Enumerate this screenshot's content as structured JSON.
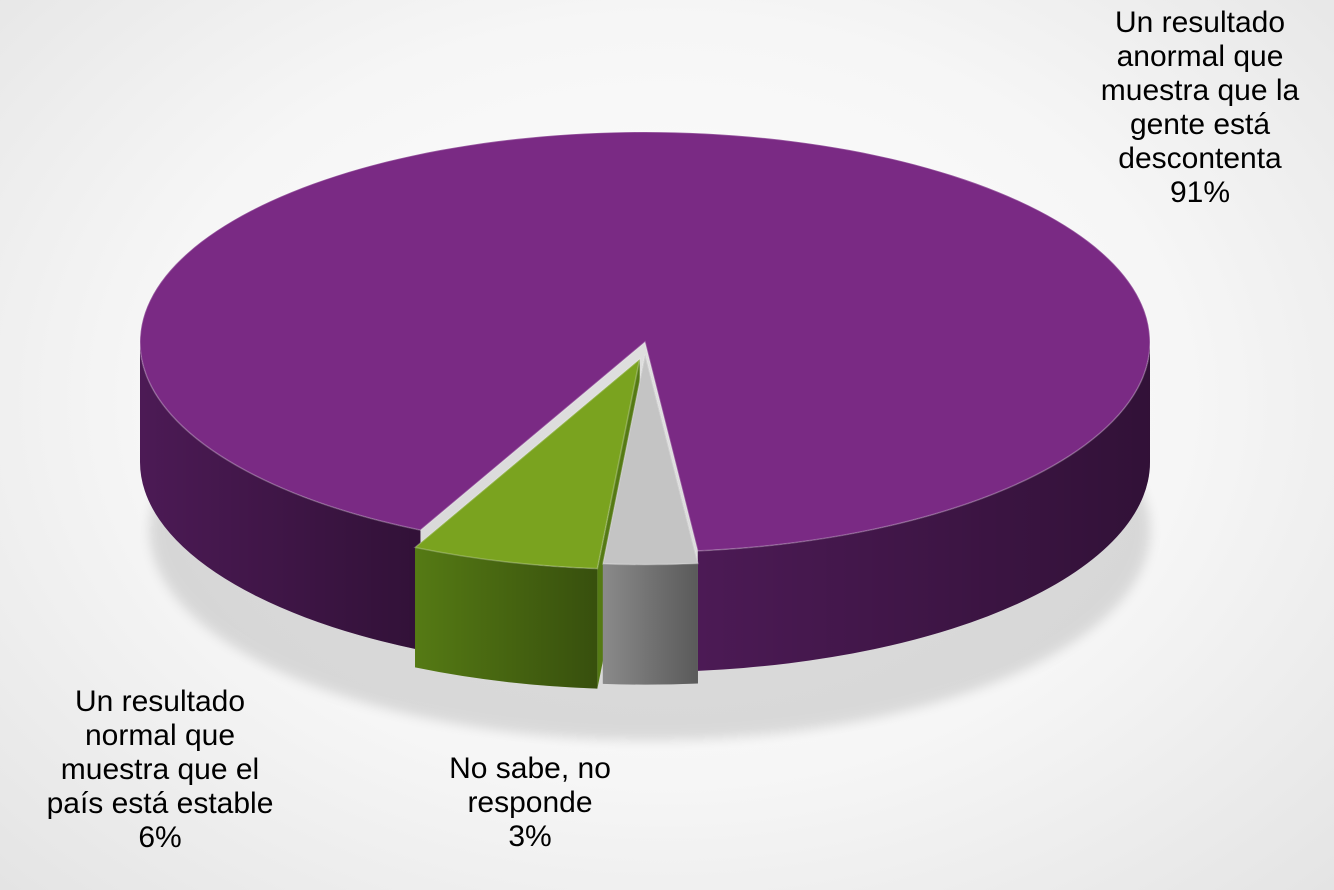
{
  "chart_data": {
    "type": "pie",
    "title": "",
    "slices": [
      {
        "label": "Un resultado\nanormal que\nmuestra que la\ngente está\ndescontenta",
        "value": 91,
        "value_label": "91%",
        "color": "#7a2a84",
        "side_color": "#4c1a55"
      },
      {
        "label": "Un resultado\nnormal que\nmuestra que el\npaís está estable",
        "value": 6,
        "value_label": "6%",
        "color": "#7aa31f",
        "side_color": "#557a14"
      },
      {
        "label": "No sabe, no\nresponde",
        "value": 3,
        "value_label": "3%",
        "color": "#c4c4c4",
        "side_color": "#8a8a8a"
      }
    ],
    "style": "3d-pie",
    "legend": "none"
  }
}
